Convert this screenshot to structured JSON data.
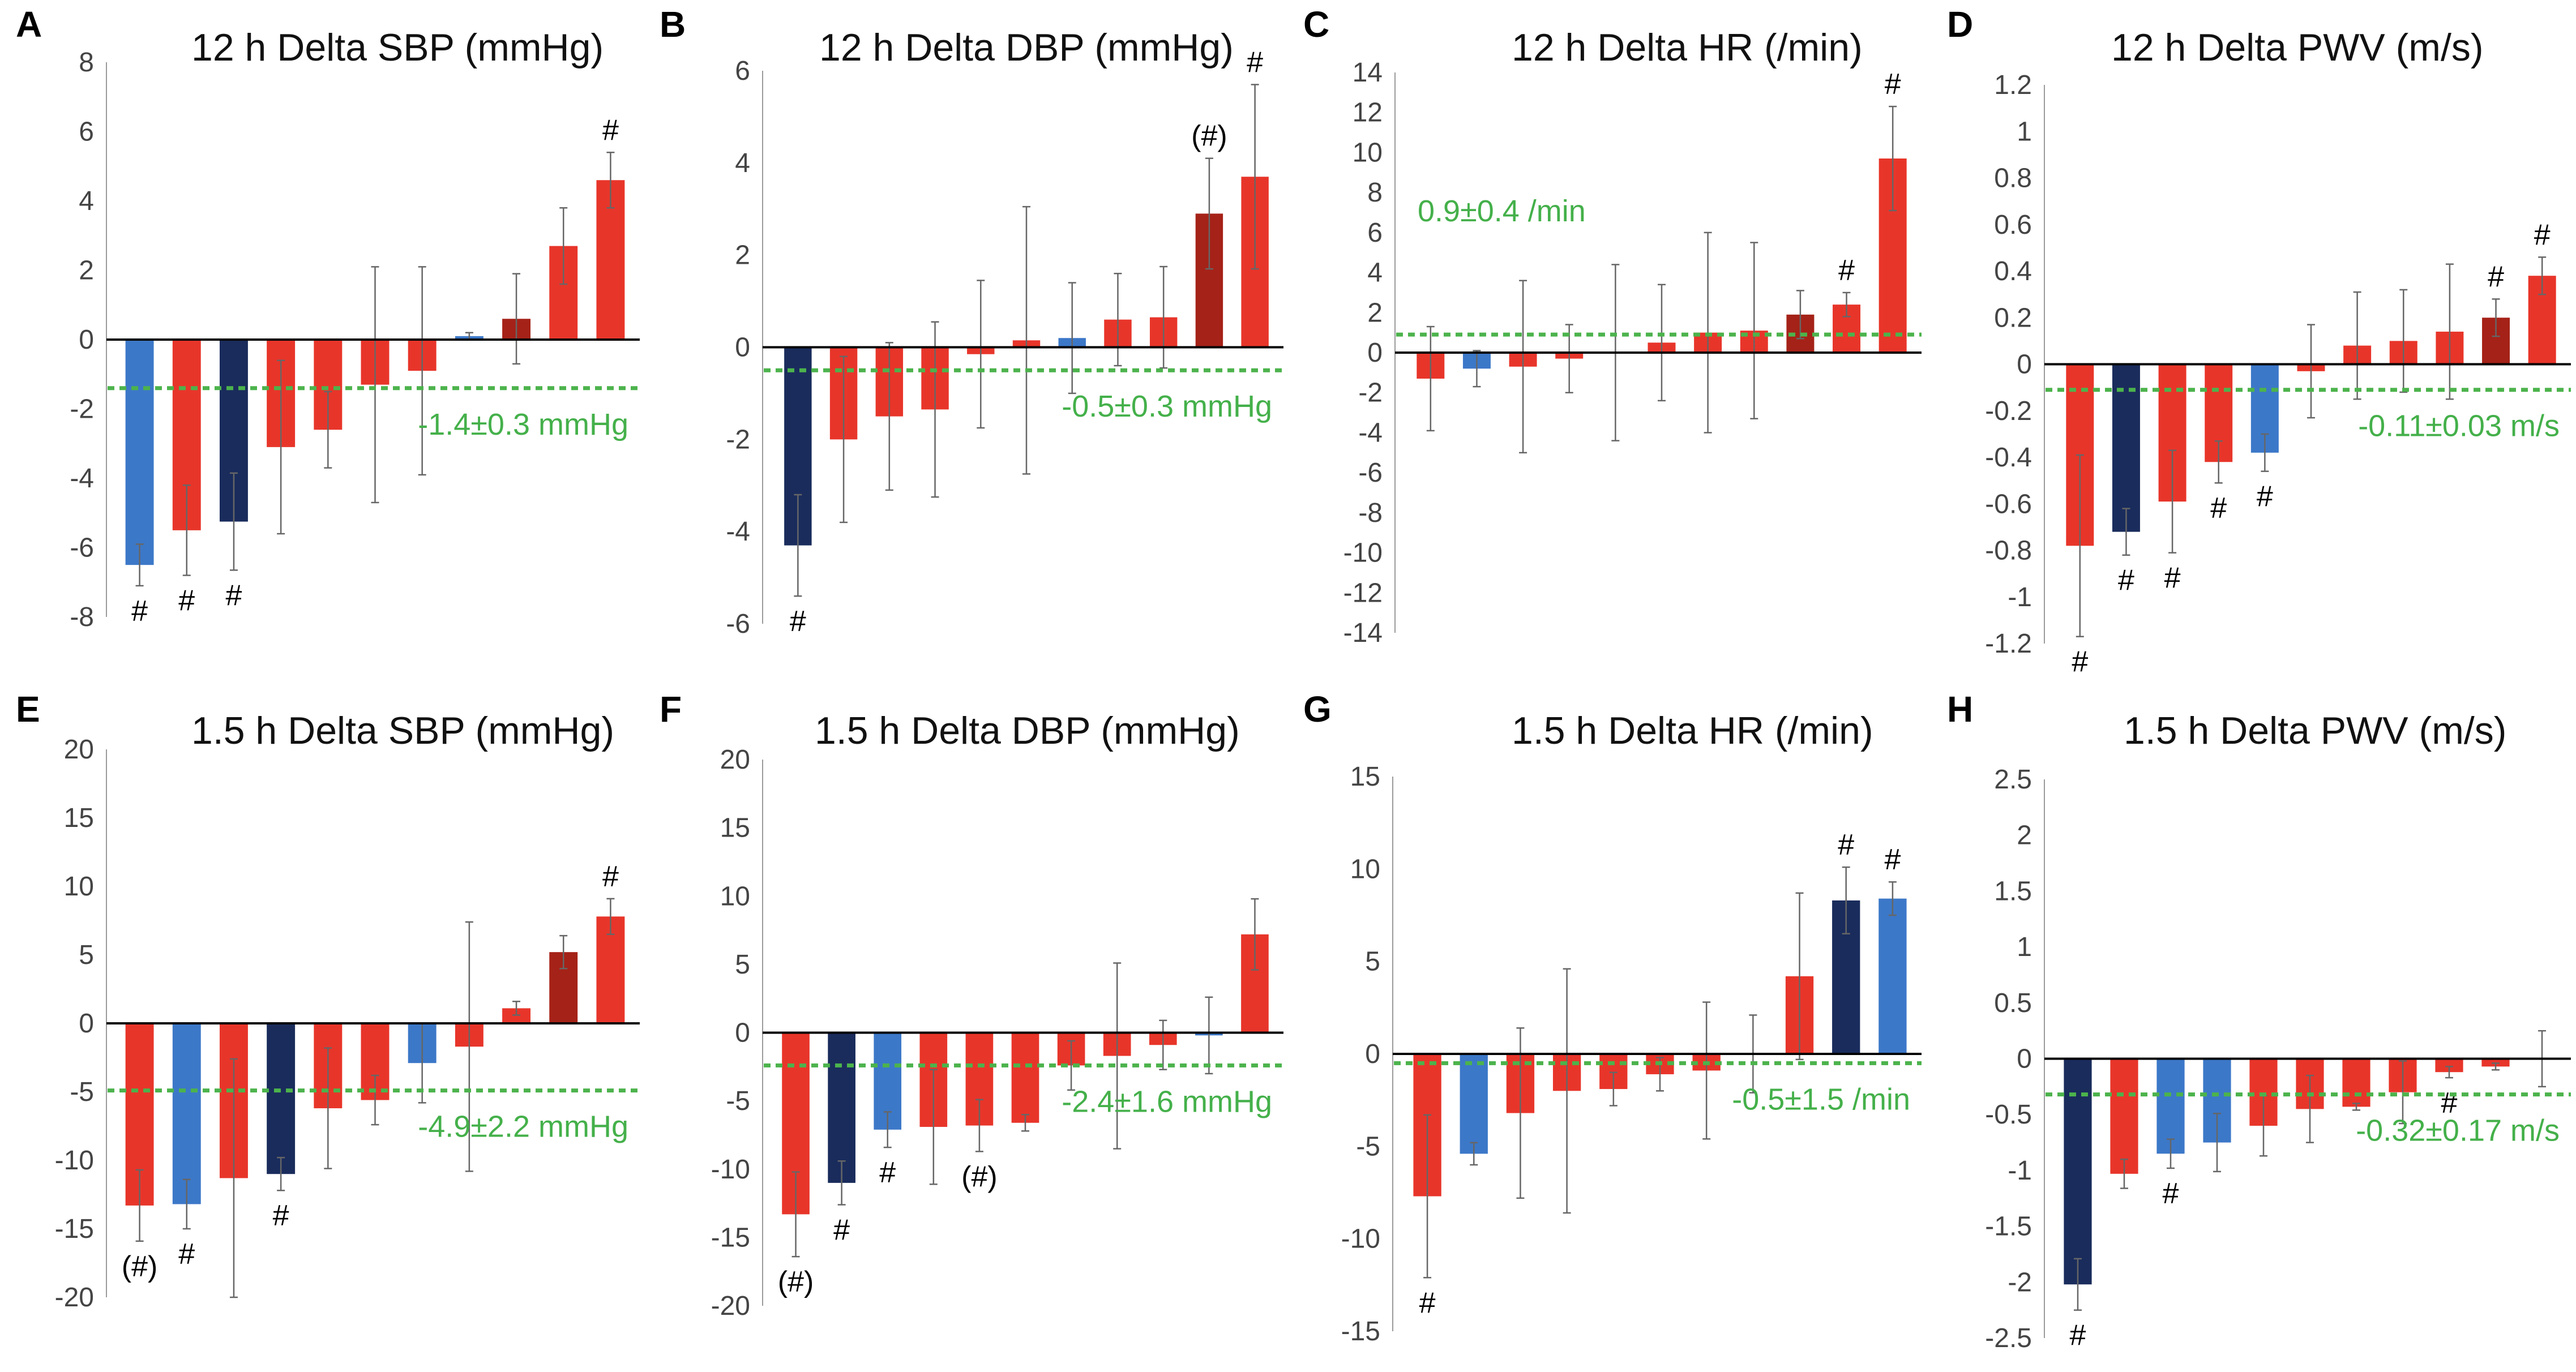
{
  "figure": {
    "colors": {
      "red": "#e8352a",
      "darkred": "#a52218",
      "navy": "#1a2c5c",
      "blue": "#3c78c8",
      "mean_line": "#4cb34c",
      "mean_text": "#44b04a",
      "axis": "#000000",
      "error_bar": "#666666"
    }
  },
  "chart_data": [
    {
      "letter": "A",
      "title": "12 h Delta SBP (mmHg)",
      "type": "bar",
      "ylim": [
        -8,
        8
      ],
      "ticks": [
        "8",
        "6",
        "4",
        "2",
        "0",
        "-2",
        "-4",
        "-6",
        "-8"
      ],
      "mean": -1.4,
      "mean_label": "-1.4±0.3 mmHg",
      "bars": [
        {
          "value": -6.5,
          "err": 0.6,
          "color": "blue",
          "mark": "#"
        },
        {
          "value": -5.5,
          "err": 1.3,
          "color": "red",
          "mark": "#"
        },
        {
          "value": -5.25,
          "err": 1.4,
          "color": "navy",
          "mark": "#"
        },
        {
          "value": -3.1,
          "err": 2.5,
          "color": "red",
          "mark": ""
        },
        {
          "value": -2.6,
          "err": 1.1,
          "color": "red",
          "mark": ""
        },
        {
          "value": -1.3,
          "err": 3.4,
          "color": "red",
          "mark": ""
        },
        {
          "value": -0.9,
          "err": 3.0,
          "color": "red",
          "mark": ""
        },
        {
          "value": 0.1,
          "err": 0.1,
          "color": "blue",
          "mark": ""
        },
        {
          "value": 0.6,
          "err": 1.3,
          "color": "darkred",
          "mark": ""
        },
        {
          "value": 2.7,
          "err": 1.1,
          "color": "red",
          "mark": ""
        },
        {
          "value": 4.6,
          "err": 0.8,
          "color": "red",
          "mark": "#"
        }
      ]
    },
    {
      "letter": "B",
      "title": "12 h Delta DBP (mmHg)",
      "type": "bar",
      "ylim": [
        -6,
        6
      ],
      "ticks": [
        "6",
        "4",
        "2",
        "0",
        "-2",
        "-4",
        "-6"
      ],
      "mean": -0.5,
      "mean_label": "-0.5±0.3 mmHg",
      "bars": [
        {
          "value": -4.3,
          "err": 1.1,
          "color": "navy",
          "mark": "#"
        },
        {
          "value": -2.0,
          "err": 1.8,
          "color": "red",
          "mark": ""
        },
        {
          "value": -1.5,
          "err": 1.6,
          "color": "red",
          "mark": ""
        },
        {
          "value": -1.35,
          "err": 1.9,
          "color": "red",
          "mark": ""
        },
        {
          "value": -0.15,
          "err": 1.6,
          "color": "red",
          "mark": ""
        },
        {
          "value": 0.15,
          "err": 2.9,
          "color": "red",
          "mark": ""
        },
        {
          "value": 0.2,
          "err": 1.2,
          "color": "blue",
          "mark": ""
        },
        {
          "value": 0.6,
          "err": 1.0,
          "color": "red",
          "mark": ""
        },
        {
          "value": 0.65,
          "err": 1.1,
          "color": "red",
          "mark": ""
        },
        {
          "value": 2.9,
          "err": 1.2,
          "color": "darkred",
          "mark": "(#)"
        },
        {
          "value": 3.7,
          "err": 2.0,
          "color": "red",
          "mark": "#"
        }
      ]
    },
    {
      "letter": "C",
      "title": "12 h Delta HR (/min)",
      "type": "bar",
      "ylim": [
        -14,
        14
      ],
      "ticks": [
        "14",
        "12",
        "10",
        "8",
        "6",
        "4",
        "2",
        "0",
        "-2",
        "-4",
        "-6",
        "-8",
        "-10",
        "-12",
        "-14"
      ],
      "mean": 0.9,
      "mean_label": "0.9±0.4 /min",
      "mean_label_pos": "top-left",
      "bars": [
        {
          "value": -1.3,
          "err": 2.6,
          "color": "red",
          "mark": ""
        },
        {
          "value": -0.8,
          "err": 0.9,
          "color": "blue",
          "mark": ""
        },
        {
          "value": -0.7,
          "err": 4.3,
          "color": "red",
          "mark": ""
        },
        {
          "value": -0.3,
          "err": 1.7,
          "color": "red",
          "mark": ""
        },
        {
          "value": 0.0,
          "err": 4.4,
          "color": "red",
          "mark": ""
        },
        {
          "value": 0.5,
          "err": 2.9,
          "color": "red",
          "mark": ""
        },
        {
          "value": 1.0,
          "err": 5.0,
          "color": "red",
          "mark": ""
        },
        {
          "value": 1.1,
          "err": 4.4,
          "color": "red",
          "mark": ""
        },
        {
          "value": 1.9,
          "err": 1.2,
          "color": "darkred",
          "mark": ""
        },
        {
          "value": 2.4,
          "err": 0.6,
          "color": "red",
          "mark": "#"
        },
        {
          "value": 9.7,
          "err": 2.6,
          "color": "red",
          "mark": "#"
        }
      ]
    },
    {
      "letter": "D",
      "title": "12 h Delta PWV (m/s)",
      "type": "bar",
      "ylim": [
        -1.2,
        1.2
      ],
      "ticks": [
        "1.2",
        "1",
        "0.8",
        "0.6",
        "0.4",
        "0.2",
        "0",
        "-0.2",
        "-0.4",
        "-0.6",
        "-0.8",
        "-1",
        "-1.2"
      ],
      "mean": -0.11,
      "mean_label": "-0.11±0.03 m/s",
      "bars": [
        {
          "value": -0.78,
          "err": 0.39,
          "color": "red",
          "mark": "#"
        },
        {
          "value": -0.72,
          "err": 0.1,
          "color": "navy",
          "mark": "#"
        },
        {
          "value": -0.59,
          "err": 0.22,
          "color": "red",
          "mark": "#"
        },
        {
          "value": -0.42,
          "err": 0.09,
          "color": "red",
          "mark": "#"
        },
        {
          "value": -0.38,
          "err": 0.08,
          "color": "blue",
          "mark": "#"
        },
        {
          "value": -0.03,
          "err": 0.2,
          "color": "red",
          "mark": ""
        },
        {
          "value": 0.08,
          "err": 0.23,
          "color": "red",
          "mark": ""
        },
        {
          "value": 0.1,
          "err": 0.22,
          "color": "red",
          "mark": ""
        },
        {
          "value": 0.14,
          "err": 0.29,
          "color": "red",
          "mark": ""
        },
        {
          "value": 0.2,
          "err": 0.08,
          "color": "darkred",
          "mark": "#"
        },
        {
          "value": 0.38,
          "err": 0.08,
          "color": "red",
          "mark": "#"
        }
      ]
    },
    {
      "letter": "E",
      "title": "1.5 h Delta SBP (mmHg)",
      "type": "bar",
      "ylim": [
        -20,
        20
      ],
      "ticks": [
        "20",
        "15",
        "10",
        "5",
        "0",
        "-5",
        "-10",
        "-15",
        "-20"
      ],
      "mean": -4.9,
      "mean_label": "-4.9±2.2 mmHg",
      "bars": [
        {
          "value": -13.3,
          "err": 2.6,
          "color": "red",
          "mark": "(#)"
        },
        {
          "value": -13.2,
          "err": 1.8,
          "color": "blue",
          "mark": "#"
        },
        {
          "value": -11.3,
          "err": 8.7,
          "color": "red",
          "mark": ""
        },
        {
          "value": -11.0,
          "err": 1.2,
          "color": "navy",
          "mark": "#"
        },
        {
          "value": -6.2,
          "err": 4.4,
          "color": "red",
          "mark": ""
        },
        {
          "value": -5.6,
          "err": 1.8,
          "color": "red",
          "mark": ""
        },
        {
          "value": -2.9,
          "err": 2.9,
          "color": "blue",
          "mark": ""
        },
        {
          "value": -1.7,
          "err": 9.1,
          "color": "red",
          "mark": ""
        },
        {
          "value": 1.1,
          "err": 0.5,
          "color": "red",
          "mark": ""
        },
        {
          "value": 5.2,
          "err": 1.2,
          "color": "darkred",
          "mark": ""
        },
        {
          "value": 7.8,
          "err": 1.3,
          "color": "red",
          "mark": "#"
        }
      ]
    },
    {
      "letter": "F",
      "title": "1.5 h Delta DBP (mmHg)",
      "type": "bar",
      "ylim": [
        -20,
        20
      ],
      "ticks": [
        "20",
        "15",
        "10",
        "5",
        "0",
        "-5",
        "-10",
        "-15",
        "-20"
      ],
      "mean": -2.4,
      "mean_label": "-2.4±1.6 mmHg",
      "bars": [
        {
          "value": -13.3,
          "err": 3.1,
          "color": "red",
          "mark": "(#)"
        },
        {
          "value": -11.0,
          "err": 1.6,
          "color": "navy",
          "mark": "#"
        },
        {
          "value": -7.1,
          "err": 1.3,
          "color": "blue",
          "mark": "#"
        },
        {
          "value": -6.9,
          "err": 4.2,
          "color": "red",
          "mark": ""
        },
        {
          "value": -6.8,
          "err": 1.9,
          "color": "red",
          "mark": "(#)"
        },
        {
          "value": -6.6,
          "err": 0.6,
          "color": "red",
          "mark": ""
        },
        {
          "value": -2.4,
          "err": 1.8,
          "color": "red",
          "mark": ""
        },
        {
          "value": -1.7,
          "err": 6.8,
          "color": "red",
          "mark": ""
        },
        {
          "value": -0.9,
          "err": 1.8,
          "color": "red",
          "mark": ""
        },
        {
          "value": -0.2,
          "err": 2.8,
          "color": "blue",
          "mark": ""
        },
        {
          "value": 7.2,
          "err": 2.6,
          "color": "red",
          "mark": ""
        }
      ]
    },
    {
      "letter": "G",
      "title": "1.5 h Delta HR (/min)",
      "type": "bar",
      "ylim": [
        -15,
        15
      ],
      "ticks": [
        "15",
        "10",
        "5",
        "0",
        "-5",
        "-10",
        "-15"
      ],
      "mean": -0.5,
      "mean_label": "-0.5±1.5 /min",
      "bars": [
        {
          "value": -7.7,
          "err": 4.4,
          "color": "red",
          "mark": "#"
        },
        {
          "value": -5.4,
          "err": 0.6,
          "color": "blue",
          "mark": ""
        },
        {
          "value": -3.2,
          "err": 4.6,
          "color": "red",
          "mark": ""
        },
        {
          "value": -2.0,
          "err": 6.6,
          "color": "red",
          "mark": ""
        },
        {
          "value": -1.9,
          "err": 0.9,
          "color": "red",
          "mark": ""
        },
        {
          "value": -1.1,
          "err": 0.9,
          "color": "red",
          "mark": ""
        },
        {
          "value": -0.9,
          "err": 3.7,
          "color": "red",
          "mark": ""
        },
        {
          "value": 0.0,
          "err": 2.1,
          "color": "red",
          "mark": ""
        },
        {
          "value": 4.2,
          "err": 4.5,
          "color": "red",
          "mark": ""
        },
        {
          "value": 8.3,
          "err": 1.8,
          "color": "navy",
          "mark": "#"
        },
        {
          "value": 8.4,
          "err": 0.9,
          "color": "blue",
          "mark": "#"
        }
      ]
    },
    {
      "letter": "H",
      "title": "1.5 h Delta PWV (m/s)",
      "type": "bar",
      "ylim": [
        -2.5,
        2.5
      ],
      "ticks": [
        "2.5",
        "2",
        "1.5",
        "1",
        "0.5",
        "0",
        "-0.5",
        "-1",
        "-1.5",
        "-2",
        "-2.5"
      ],
      "mean": -0.32,
      "mean_label": "-0.32±0.17 m/s",
      "bars": [
        {
          "value": -2.02,
          "err": 0.23,
          "color": "navy",
          "mark": "#"
        },
        {
          "value": -1.03,
          "err": 0.13,
          "color": "red",
          "mark": ""
        },
        {
          "value": -0.85,
          "err": 0.13,
          "color": "blue",
          "mark": "#"
        },
        {
          "value": -0.75,
          "err": 0.26,
          "color": "blue",
          "mark": ""
        },
        {
          "value": -0.6,
          "err": 0.27,
          "color": "red",
          "mark": ""
        },
        {
          "value": -0.45,
          "err": 0.3,
          "color": "red",
          "mark": ""
        },
        {
          "value": -0.43,
          "err": 0.03,
          "color": "red",
          "mark": ""
        },
        {
          "value": -0.3,
          "err": 0.28,
          "color": "red",
          "mark": ""
        },
        {
          "value": -0.12,
          "err": 0.05,
          "color": "red",
          "mark": "#"
        },
        {
          "value": -0.07,
          "err": 0.03,
          "color": "red",
          "mark": ""
        },
        {
          "value": 0.0,
          "err": 0.25,
          "color": "red",
          "mark": ""
        }
      ]
    }
  ]
}
